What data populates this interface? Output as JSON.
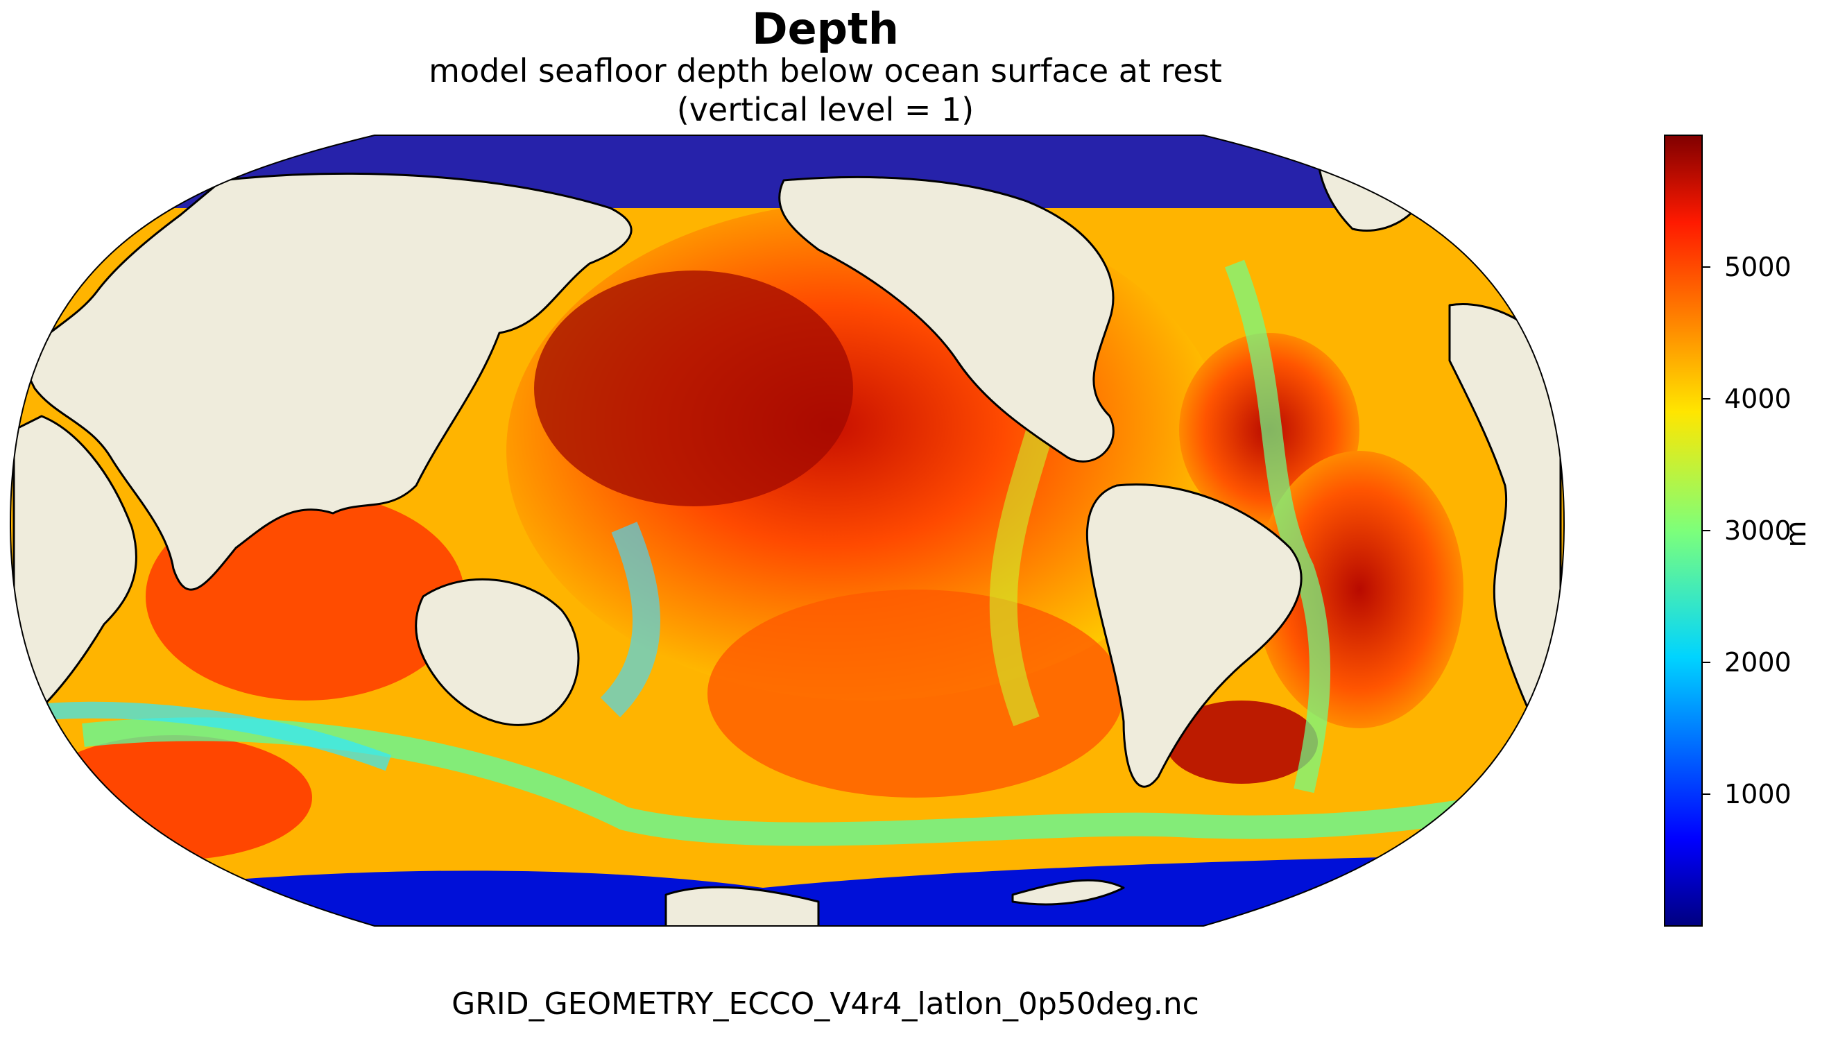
{
  "title": "Depth",
  "subtitle_line1": "model seafloor depth below ocean surface at rest",
  "subtitle_line2": "(vertical level = 1)",
  "source_file": "GRID_GEOMETRY_ECCO_V4r4_latlon_0p50deg.nc",
  "colorbar": {
    "label": "m",
    "colormap": "jet",
    "min": 0,
    "max": 6000,
    "ticks": [
      1000,
      2000,
      3000,
      4000,
      5000
    ],
    "tick_labels": [
      "1000",
      "2000",
      "3000",
      "4000",
      "5000"
    ]
  },
  "map": {
    "projection": "Robinson",
    "central_longitude": 180,
    "land_color": "#efecdc",
    "coastline_color": "#000000"
  }
}
